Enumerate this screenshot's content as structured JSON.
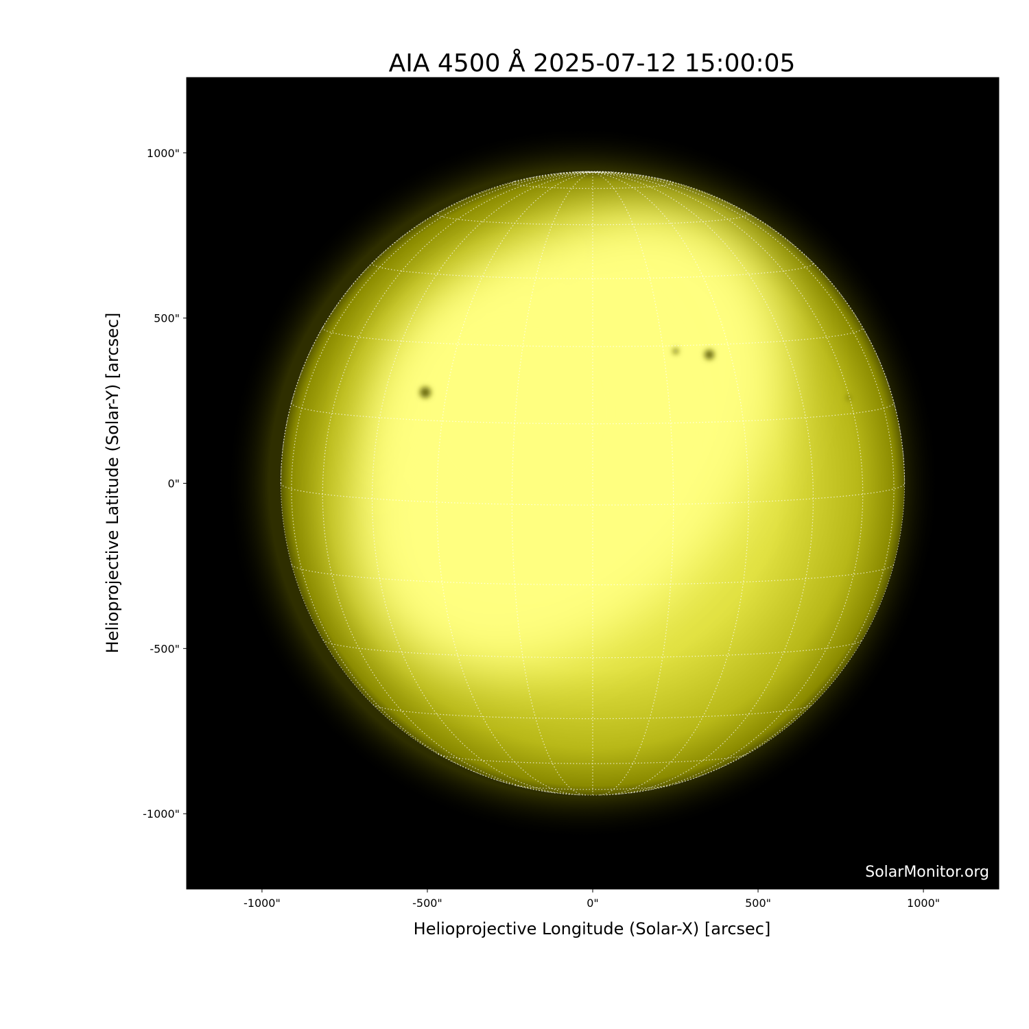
{
  "chart_data": {
    "type": "image",
    "title": "AIA 4500 Å 2025-07-12 15:00:05",
    "xlabel": "Helioprojective Longitude (Solar-X) [arcsec]",
    "ylabel": "Helioprojective Latitude (Solar-Y) [arcsec]",
    "xlim": [
      -1228,
      1228
    ],
    "ylim": [
      -1228,
      1228
    ],
    "xticks": [
      -1000,
      -500,
      0,
      500,
      1000
    ],
    "xtick_labels": [
      "-1000\"",
      "-500\"",
      "0\"",
      "500\"",
      "1000\""
    ],
    "yticks": [
      1000,
      500,
      0,
      -500,
      -1000
    ],
    "ytick_labels": [
      "1000\"",
      "500\"",
      "0\"",
      "-500\"",
      "-1000\""
    ],
    "solar_radius_arcsec": 943,
    "grid_spacing_deg": 15,
    "b0_deg": 4,
    "colormap": "yellow",
    "colors": {
      "background": "#000000",
      "disk_bright": "#ffff80",
      "disk_mid": "#d8d838",
      "disk_limb": "#6a6a00",
      "grid": "#ffffff"
    },
    "watermark": "SolarMonitor.org"
  }
}
